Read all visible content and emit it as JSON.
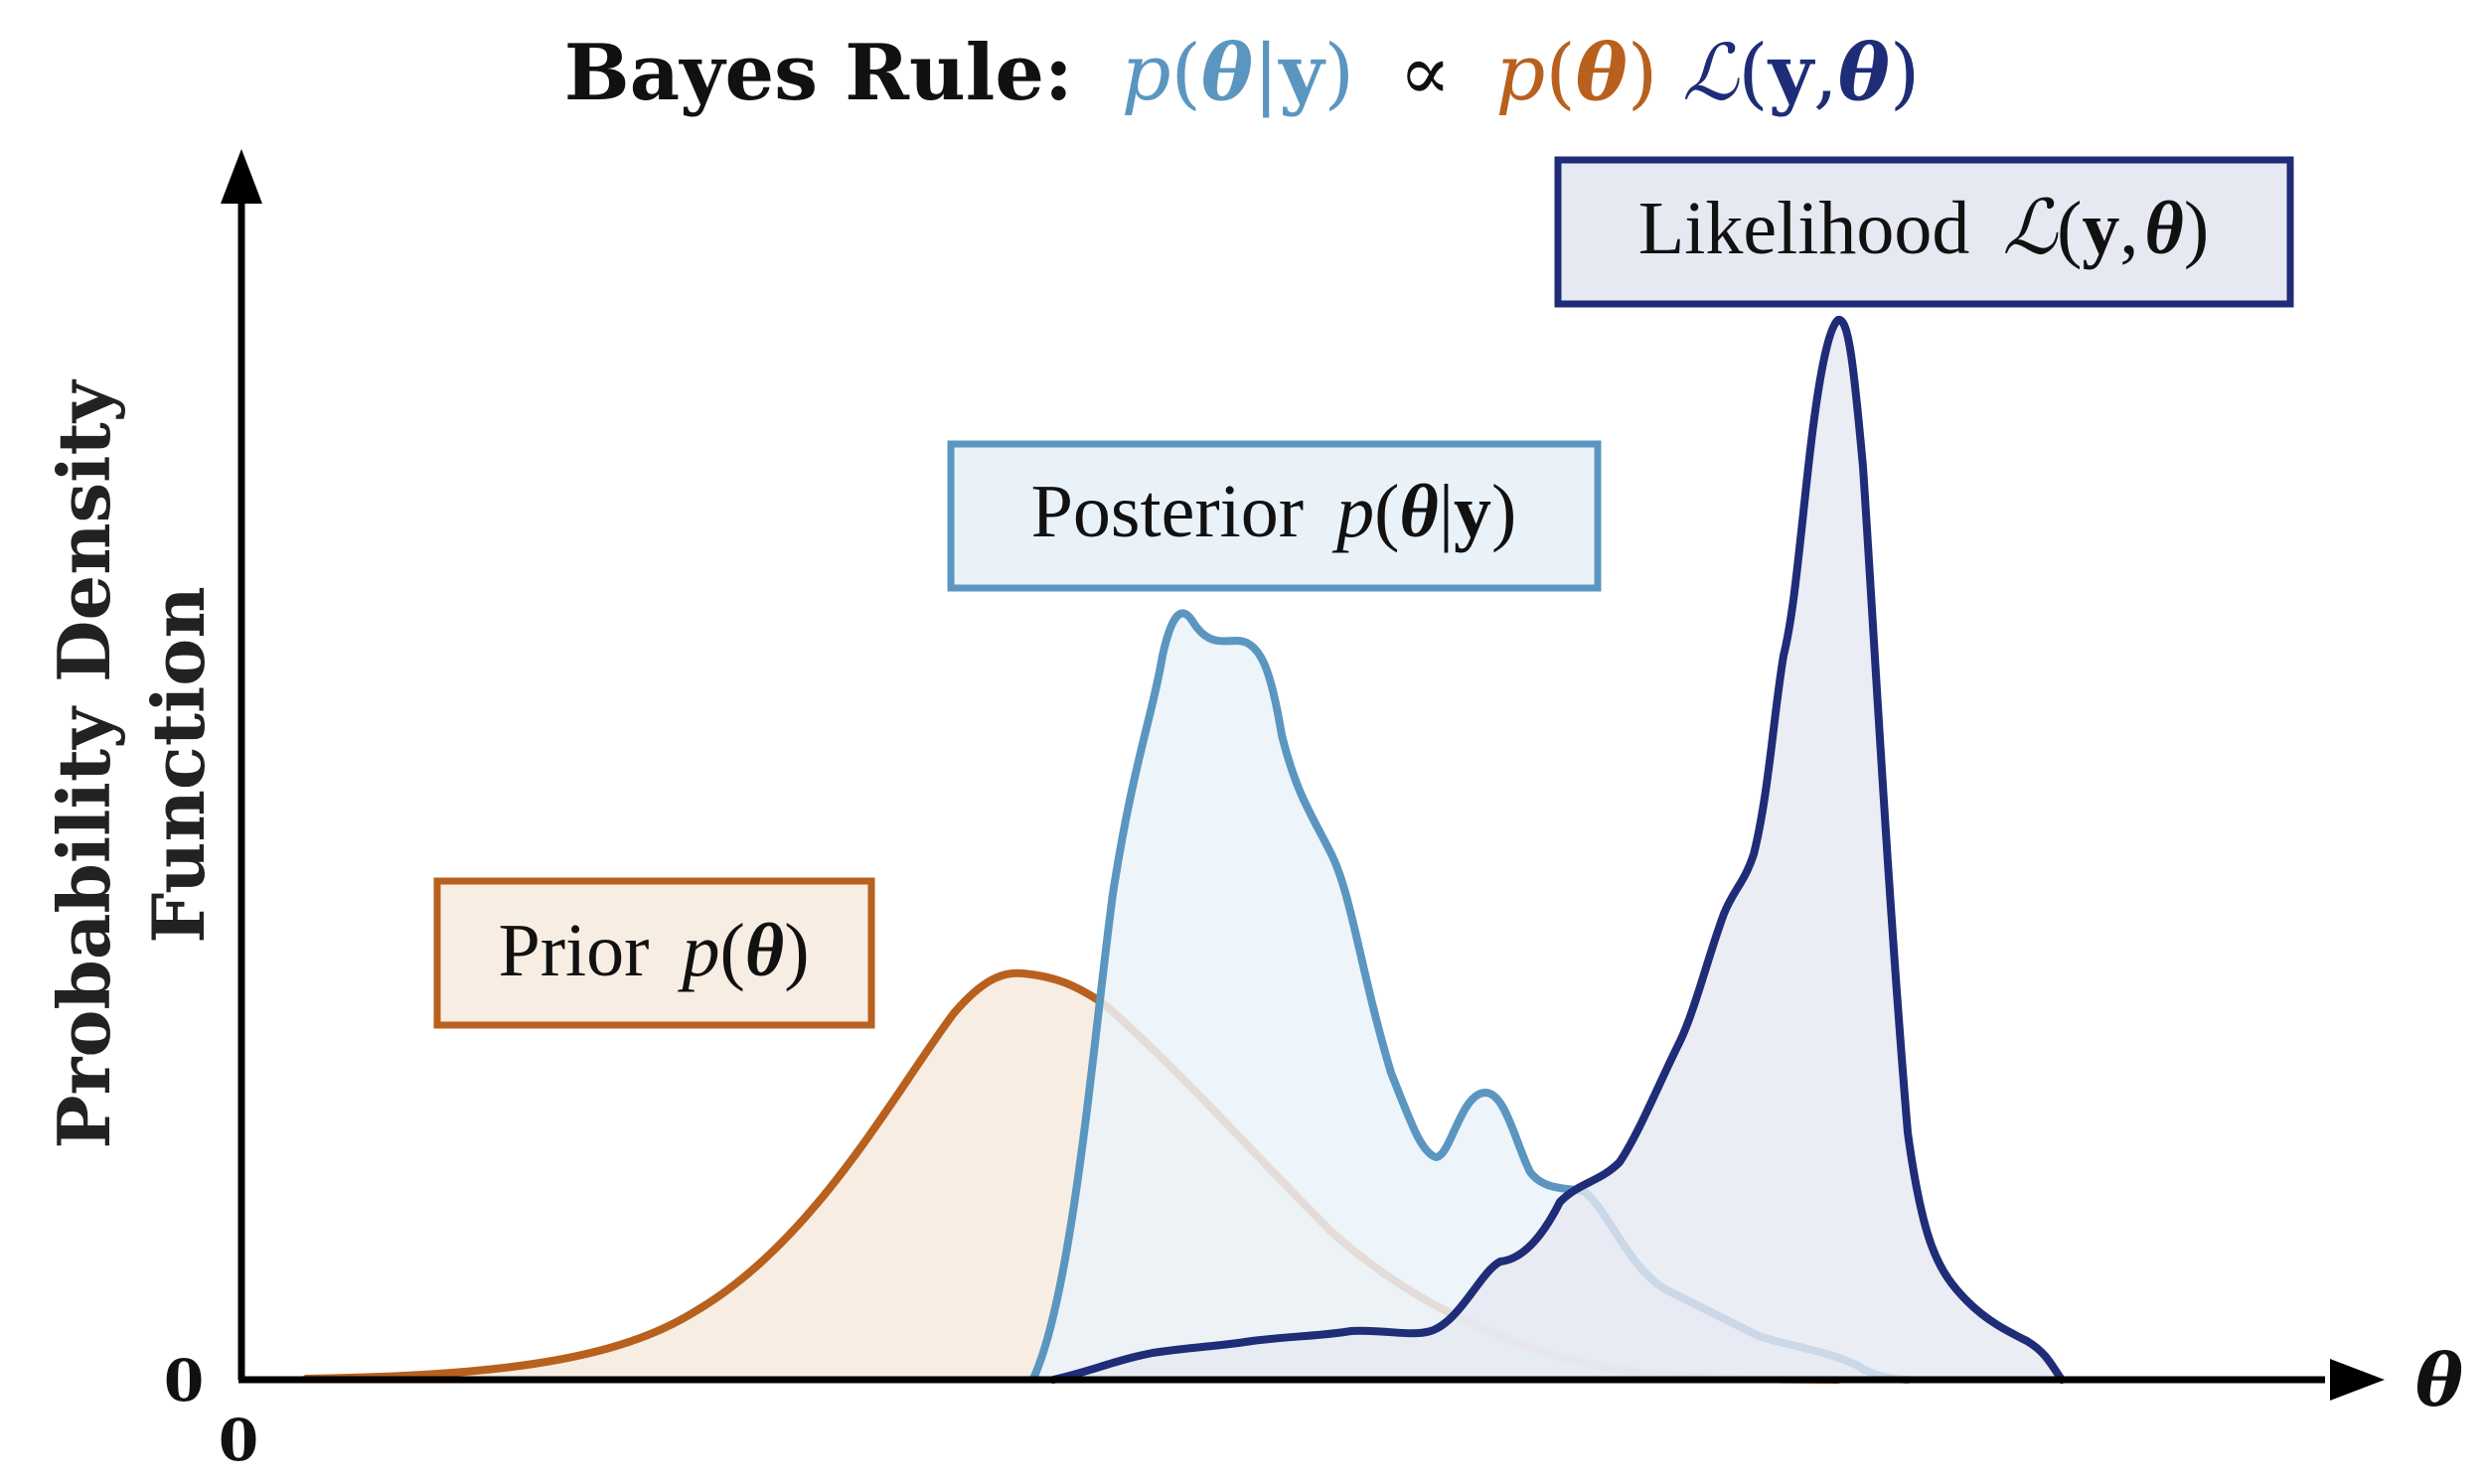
{
  "title": {
    "prefix": "Bayes Rule:",
    "posterior": {
      "p": "p",
      "open": "(",
      "theta": "θ",
      "bar": "|",
      "y": "y",
      "close": ")"
    },
    "proportional": "∝",
    "prior": {
      "p": "p",
      "open": "(",
      "theta": "θ",
      "close": ")"
    },
    "likelihood": {
      "L": "ℒ",
      "open": "(",
      "y": "y",
      "comma": ",",
      "theta": "θ",
      "close": ")"
    }
  },
  "labels": {
    "prior": {
      "word": "Prior",
      "p": "p",
      "open": "(",
      "theta": "θ",
      "close": ")"
    },
    "posterior": {
      "word": "Posterior",
      "p": "p",
      "open": "(",
      "theta": "θ",
      "bar": "|",
      "y": "y",
      "close": ")"
    },
    "likelihood": {
      "word": "Likelihood",
      "L": "ℒ",
      "open": "(",
      "y": "y",
      "comma": ",",
      "theta": "θ",
      "close": ")"
    }
  },
  "axes": {
    "ylabel_line1": "Probability Density",
    "ylabel_line2": "Function",
    "xlabel": "θ",
    "y_origin": "0",
    "x_origin": "0"
  },
  "colors": {
    "prior": "#b8601e",
    "prior_fill": "#f7ede3",
    "posterior": "#5b96c0",
    "posterior_fill": "#eaf2f9",
    "likelihood": "#1f2c77",
    "likelihood_fill": "#e6e9f1",
    "axis": "#000000"
  }
}
